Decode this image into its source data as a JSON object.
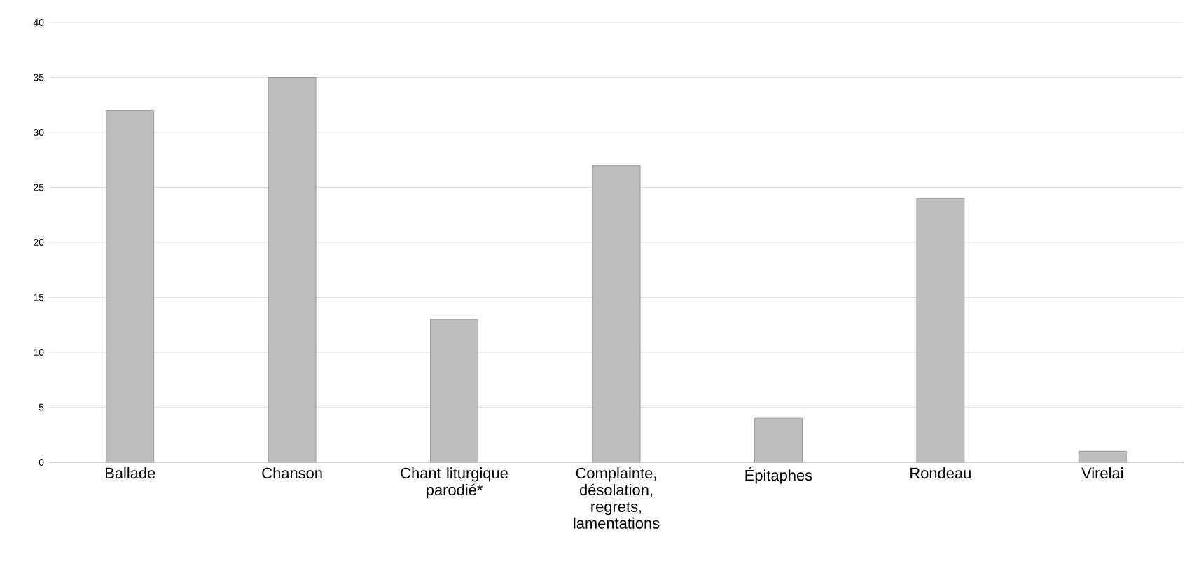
{
  "chart_data": {
    "type": "bar",
    "categories": [
      "Ballade",
      "Chanson",
      "Chant liturgique parodié*",
      "Complainte, désolation, regrets, lamentations",
      "Épitaphes",
      "Rondeau",
      "Virelai"
    ],
    "values": [
      32,
      35,
      13,
      27,
      4,
      24,
      1
    ],
    "color": "#bdbdbd",
    "ylim": [
      0,
      40
    ],
    "yticks": [
      0,
      5,
      10,
      15,
      20,
      25,
      30,
      35,
      40
    ],
    "grid": "y"
  }
}
